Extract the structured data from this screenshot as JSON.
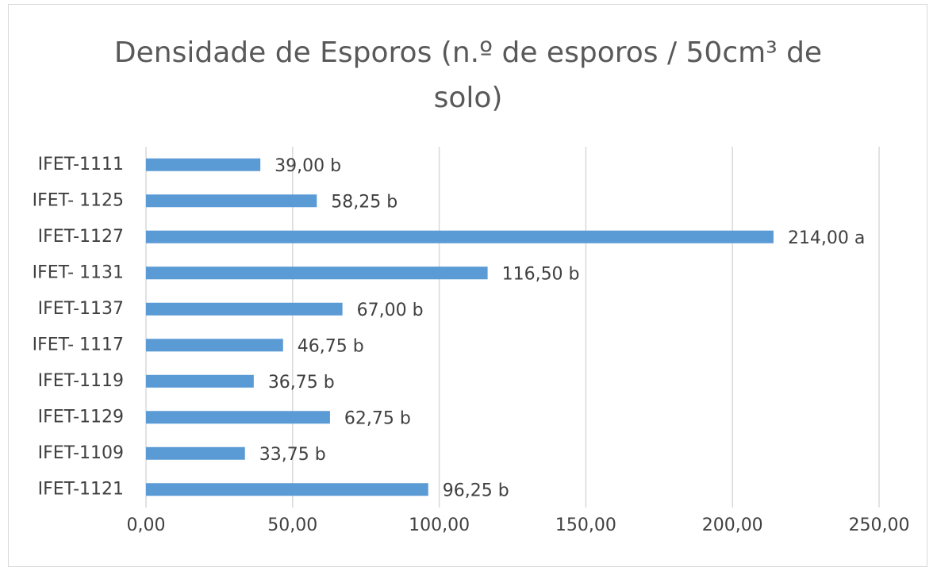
{
  "chart_data": {
    "type": "bar",
    "orientation": "horizontal",
    "title": "Densidade de Esporos (n.º de esporos / 50cm³ de solo)",
    "categories": [
      "IFET-1111",
      "IFET- 1125",
      "IFET-1127",
      "IFET- 1131",
      "IFET-1137",
      "IFET- 1117",
      "IFET-1119",
      "IFET-1129",
      "IFET-1109",
      "IFET-1121"
    ],
    "values": [
      39.0,
      58.25,
      214.0,
      116.5,
      67.0,
      46.75,
      36.75,
      62.75,
      33.75,
      96.25
    ],
    "value_labels": [
      "39,00 b",
      "58,25 b",
      "214,00 a",
      "116,50 b",
      "67,00 b",
      "46,75 b",
      "36,75 b",
      "62,75 b",
      "33,75 b",
      "96,25 b"
    ],
    "color": "#5b9bd5",
    "xlim": [
      0,
      250
    ],
    "xticks": [
      {
        "value": 0,
        "label": "0,00"
      },
      {
        "value": 50,
        "label": "50,00"
      },
      {
        "value": 100,
        "label": "100,00"
      },
      {
        "value": 150,
        "label": "150,00"
      },
      {
        "value": 200,
        "label": "200,00"
      },
      {
        "value": 250,
        "label": "250,00"
      }
    ],
    "grid": true
  }
}
